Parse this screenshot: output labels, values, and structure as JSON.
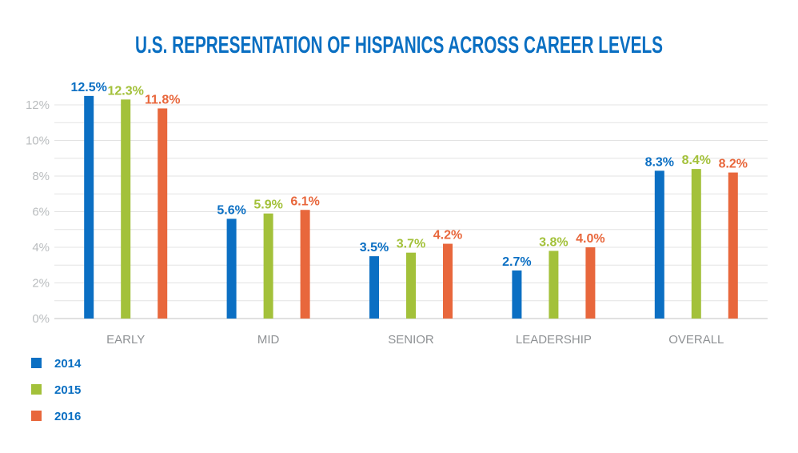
{
  "chart_data": {
    "type": "bar",
    "title": "U.S. REPRESENTATION OF HISPANICS ACROSS CAREER LEVELS",
    "categories": [
      "EARLY",
      "MID",
      "SENIOR",
      "LEADERSHIP",
      "OVERALL"
    ],
    "series": [
      {
        "name": "2014",
        "color": "#0b6fc3",
        "values": [
          12.5,
          5.6,
          3.5,
          2.7,
          8.3
        ],
        "labels": [
          "12.5%",
          "5.6%",
          "3.5%",
          "2.7%",
          "8.3%"
        ]
      },
      {
        "name": "2015",
        "color": "#a3c13a",
        "values": [
          12.3,
          5.9,
          3.7,
          3.8,
          8.4
        ],
        "labels": [
          "12.3%",
          "5.9%",
          "3.7%",
          "3.8%",
          "8.4%"
        ]
      },
      {
        "name": "2016",
        "color": "#e8673c",
        "values": [
          11.8,
          6.1,
          4.2,
          4.0,
          8.2
        ],
        "labels": [
          "11.8%",
          "6.1%",
          "4.2%",
          "4.0%",
          "8.2%"
        ]
      }
    ],
    "ylim": [
      0,
      12
    ],
    "yticks": [
      0,
      2,
      4,
      6,
      8,
      10,
      12
    ],
    "ytick_labels": [
      "0%",
      "2%",
      "4%",
      "6%",
      "8%",
      "10%",
      "12%"
    ],
    "grid": true,
    "legend_position": "bottom-left"
  }
}
